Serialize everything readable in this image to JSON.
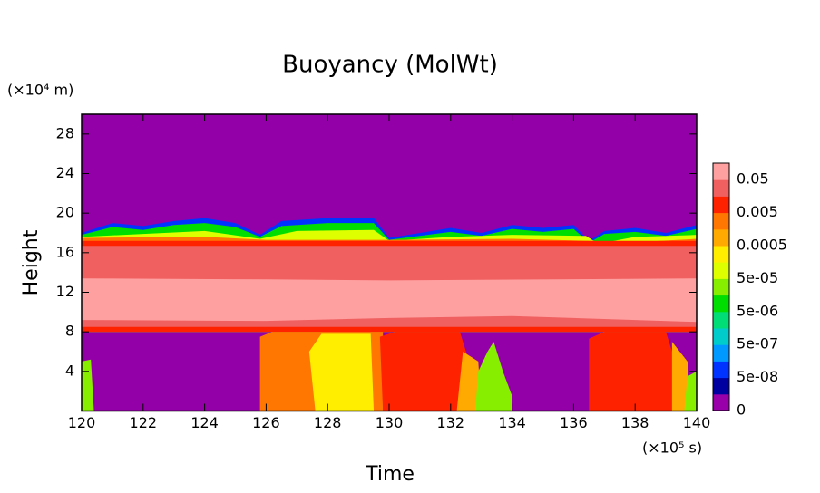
{
  "chart_data": {
    "type": "contour",
    "title": "Buoyancy (MolWt)",
    "xlabel": "Time",
    "ylabel": "Height",
    "xunit": "(×10⁵ s)",
    "yunit": "(×10⁴ m)",
    "xlim": [
      120,
      140
    ],
    "ylim": [
      0,
      30
    ],
    "xticks": [
      120,
      122,
      124,
      126,
      128,
      130,
      132,
      134,
      136,
      138,
      140
    ],
    "yticks": [
      4,
      8,
      12,
      16,
      20,
      24,
      28
    ],
    "background": "#9400a8",
    "colorbar": {
      "colors": [
        "#9900aa",
        "#0000a0",
        "#0033ff",
        "#0099ff",
        "#00cccc",
        "#00dd77",
        "#00dd00",
        "#88ee00",
        "#ddff00",
        "#ffee00",
        "#ffaa00",
        "#ff7700",
        "#ff2200",
        "#f06060",
        "#ffa0a0"
      ],
      "ticks": [
        0,
        {
          "value": 5e-08,
          "label": "5e-08"
        },
        {
          "value": 5e-07,
          "label": "5e-07"
        },
        {
          "value": 5e-06,
          "label": "5e-06"
        },
        {
          "value": 5e-05,
          "label": "5e-05"
        },
        0.0005,
        0.005,
        0.05
      ]
    },
    "regions": [
      {
        "color": "#0033ff",
        "x": [
          120,
          120,
          121,
          122,
          123,
          124,
          125,
          125.8,
          126.5,
          128,
          129.5,
          130,
          131,
          132,
          133,
          134,
          135,
          136,
          136.5,
          137,
          138,
          139,
          140,
          140
        ],
        "y": [
          8,
          18,
          19,
          18.7,
          19.2,
          19.5,
          19,
          17.8,
          19.2,
          19.5,
          19.5,
          17.5,
          18,
          18.5,
          18,
          18.8,
          18.5,
          18.8,
          17.2,
          18.2,
          18.5,
          18,
          18.8,
          8
        ]
      },
      {
        "color": "#00dd00",
        "x": [
          120,
          120,
          121,
          122,
          123,
          124,
          125,
          125.8,
          126.5,
          128,
          129.5,
          130,
          131,
          132,
          133,
          134,
          135,
          136,
          136.5,
          137,
          138,
          139,
          140,
          140
        ],
        "y": [
          8,
          17.8,
          18.6,
          18.3,
          18.8,
          19,
          18.6,
          17.6,
          18.7,
          19,
          19,
          17.3,
          17.7,
          18.1,
          17.7,
          18.4,
          18.1,
          18.4,
          17,
          17.9,
          18.1,
          17.7,
          18.4,
          8
        ]
      },
      {
        "color": "#ddff00",
        "x": [
          120,
          120,
          122,
          124,
          125.8,
          127,
          129.5,
          130,
          132,
          134,
          136.4,
          136.8,
          138,
          140,
          140
        ],
        "y": [
          8,
          17.6,
          17.9,
          18.2,
          17.4,
          18.2,
          18.3,
          17.2,
          17.6,
          17.8,
          17.7,
          16.9,
          17.6,
          17.8,
          8
        ]
      },
      {
        "color": "#ff7700",
        "x": [
          120,
          120,
          124,
          126,
          130,
          134,
          136.5,
          137,
          140,
          140
        ],
        "y": [
          8,
          17.5,
          17.6,
          17.3,
          17.3,
          17.4,
          17.2,
          16.9,
          17.4,
          8
        ]
      },
      {
        "color": "#ff2200",
        "x": [
          120,
          120,
          140,
          140
        ],
        "y": [
          8,
          17.2,
          17.2,
          8
        ]
      },
      {
        "color": "#f06060",
        "x": [
          120,
          120,
          140,
          140
        ],
        "y": [
          8.5,
          16.7,
          16.7,
          8.5
        ]
      },
      {
        "color": "#ffa0a0",
        "x": [
          120,
          120,
          126,
          130,
          140,
          140,
          134,
          130,
          126
        ],
        "y": [
          9.2,
          13.4,
          13.3,
          13.2,
          13.4,
          9,
          9.6,
          9.4,
          9.1
        ]
      },
      {
        "color": "#ff7700",
        "x": [
          125.8,
          125.8,
          126.2,
          129.8,
          129.8
        ],
        "y": [
          0,
          7.5,
          8,
          8,
          0
        ]
      },
      {
        "color": "#ffee00",
        "x": [
          127.6,
          127.4,
          127.8,
          129.4,
          129.5
        ],
        "y": [
          0,
          6,
          7.8,
          7.8,
          0
        ]
      },
      {
        "color": "#ff2200",
        "x": [
          129.8,
          129.7,
          130.2,
          132.3,
          132.6,
          132.8
        ],
        "y": [
          0,
          7.5,
          8,
          8,
          5,
          0
        ]
      },
      {
        "color": "#ffaa00",
        "x": [
          132.2,
          132.4,
          132.9,
          133
        ],
        "y": [
          0,
          6,
          5,
          0
        ]
      },
      {
        "color": "#88ee00",
        "x": [
          132.8,
          132.9,
          133.2,
          133.4,
          133.7,
          134,
          134
        ],
        "y": [
          0,
          4,
          6,
          7,
          4,
          1.5,
          0
        ]
      },
      {
        "color": "#ff2200",
        "x": [
          136.5,
          136.5,
          137,
          139,
          139.3,
          139.3
        ],
        "y": [
          0,
          7.3,
          8,
          8,
          5,
          0
        ]
      },
      {
        "color": "#ffaa00",
        "x": [
          139.2,
          139.2,
          139.7,
          139.8
        ],
        "y": [
          0,
          7,
          5,
          0
        ]
      },
      {
        "color": "#88ee00",
        "x": [
          139.6,
          139.7,
          140,
          140
        ],
        "y": [
          0,
          3.5,
          4,
          0
        ]
      },
      {
        "color": "#88ee00",
        "x": [
          120,
          120,
          120.3,
          120.4
        ],
        "y": [
          0,
          5,
          5.2,
          0
        ]
      }
    ]
  }
}
